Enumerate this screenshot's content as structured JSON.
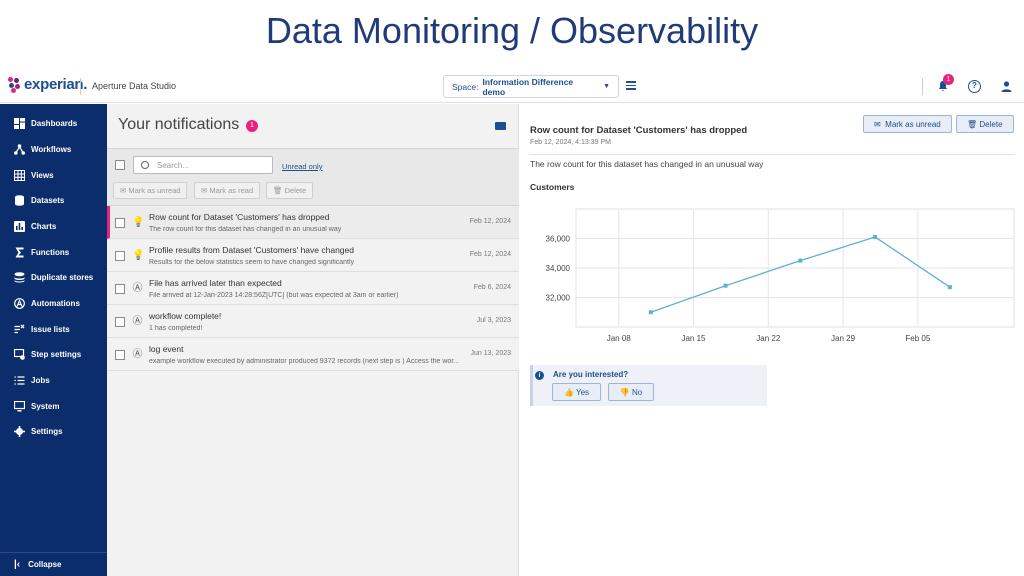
{
  "slide": {
    "title": "Data Monitoring / Observability"
  },
  "header": {
    "brand": "experian.",
    "app_name": "Aperture Data Studio",
    "space_label": "Space:",
    "space_value": "Information Difference demo",
    "notification_count": "1",
    "help_symbol": "?"
  },
  "sidebar": {
    "items": [
      {
        "label": "Dashboards",
        "icon": "dashboard-icon"
      },
      {
        "label": "Workflows",
        "icon": "workflow-icon"
      },
      {
        "label": "Views",
        "icon": "grid-icon"
      },
      {
        "label": "Datasets",
        "icon": "database-icon"
      },
      {
        "label": "Charts",
        "icon": "chart-icon"
      },
      {
        "label": "Functions",
        "icon": "sigma-icon"
      },
      {
        "label": "Duplicate stores",
        "icon": "stack-icon"
      },
      {
        "label": "Automations",
        "icon": "automation-icon"
      },
      {
        "label": "Issue lists",
        "icon": "issue-list-icon"
      },
      {
        "label": "Step settings",
        "icon": "step-settings-icon"
      },
      {
        "label": "Jobs",
        "icon": "list-icon"
      },
      {
        "label": "System",
        "icon": "monitor-icon"
      },
      {
        "label": "Settings",
        "icon": "gear-icon"
      }
    ],
    "collapse_label": "Collapse"
  },
  "notifications": {
    "title": "Your notifications",
    "unread_count": "1",
    "search_placeholder": "Search...",
    "unread_only_label": "Unread only",
    "mark_unread_label": "Mark as unread",
    "mark_read_label": "Mark as read",
    "delete_label": "Delete",
    "items": [
      {
        "title": "Row count for Dataset 'Customers' has dropped",
        "subtitle": "The row count for this dataset has changed in an unusual way",
        "date": "Feb 12, 2024",
        "icon": "lightbulb-icon"
      },
      {
        "title": "Profile results from Dataset 'Customers' have changed",
        "subtitle": "Results for the below statistics seem to have changed significantly",
        "date": "Feb 12, 2024",
        "icon": "lightbulb-icon"
      },
      {
        "title": "File has arrived later than expected",
        "subtitle": "File arrived at 12-Jan-2023 14:28:56Z[UTC] (but was expected at 3am or earlier)",
        "date": "Feb 6, 2024",
        "icon": "automation-icon"
      },
      {
        "title": "workflow complete!",
        "subtitle": "1 has completed!",
        "date": "Jul 3, 2023",
        "icon": "automation-icon"
      },
      {
        "title": "log event",
        "subtitle": "example workflow executed by administrator produced 9372 records (next step is ) Access the wor...",
        "date": "Jun 13, 2023",
        "icon": "automation-icon"
      }
    ]
  },
  "detail": {
    "title": "Row count for Dataset 'Customers' has dropped",
    "date": "Feb 12, 2024, 4:13:39 PM",
    "mark_unread_label": "Mark as unread",
    "delete_label": "Delete",
    "message": "The row count for this dataset has changed in an unusual way",
    "subtitle": "Customers",
    "interest_question": "Are you interested?",
    "yes_label": "Yes",
    "no_label": "No"
  },
  "chart_data": {
    "type": "line",
    "title": "Customers",
    "x": [
      "Jan 11",
      "Jan 18",
      "Jan 25",
      "Feb 01",
      "Feb 08"
    ],
    "x_tick_labels": [
      "Jan 08",
      "Jan 15",
      "Jan 22",
      "Jan 29",
      "Feb 05"
    ],
    "y_tick_labels": [
      "36,000",
      "34,000",
      "32,000"
    ],
    "series": [
      {
        "values": [
          31000,
          32800,
          34500,
          36100,
          32700
        ]
      }
    ],
    "ylim": [
      30000,
      38000
    ],
    "grid": true,
    "color": "#5fb0d8"
  },
  "colors": {
    "accent": "#e6247f",
    "brand": "#1d4f91",
    "sidebar": "#0b2d6b"
  }
}
